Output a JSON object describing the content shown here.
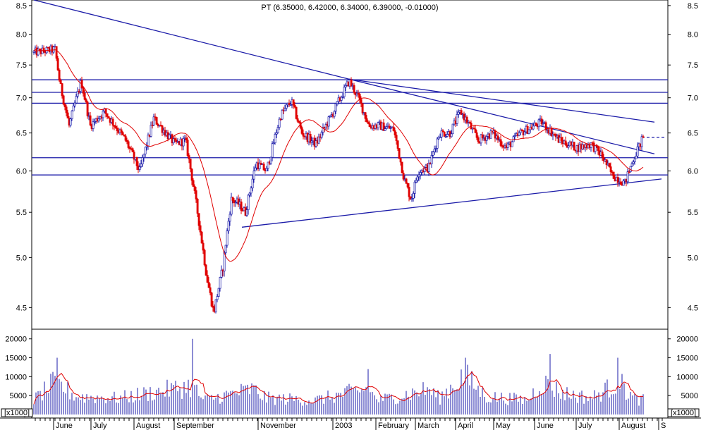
{
  "chart_data": {
    "type": "candlestick",
    "title": "PT (6.35000, 6.42000, 6.34000, 6.39000, -0.01000)",
    "price_axis": {
      "min": 4.3,
      "max": 8.6,
      "log": true,
      "ticks": [
        "4.5",
        "5.0",
        "5.5",
        "6.0",
        "6.5",
        "7.0",
        "7.5",
        "8.0",
        "8.5"
      ]
    },
    "volume_axis": {
      "min": 0,
      "max": 22000,
      "ticks": [
        "0",
        "5000",
        "10000",
        "15000",
        "20000"
      ],
      "scale_label": "x1000"
    },
    "x_labels": [
      "June",
      "July",
      "August",
      "September",
      "November",
      "2003",
      "February",
      "March",
      "April",
      "May",
      "June",
      "July",
      "August",
      "S"
    ],
    "horizontal_lines": [
      5.95,
      6.17,
      6.92,
      7.08,
      7.27
    ],
    "dashed_level": 6.44,
    "trendlines": [
      {
        "from": [
          0,
          8.6
        ],
        "to": [
          447,
          7.28
        ]
      },
      {
        "from": [
          447,
          7.28
        ],
        "to": [
          880,
          6.65
        ]
      },
      {
        "from": [
          447,
          7.28
        ],
        "to": [
          880,
          6.22
        ]
      },
      {
        "from": [
          295,
          5.33
        ],
        "to": [
          890,
          5.9
        ]
      }
    ],
    "ohlc_anchors": [
      [
        0,
        7.7
      ],
      [
        30,
        7.75
      ],
      [
        37,
        7.2
      ],
      [
        50,
        6.6
      ],
      [
        67,
        7.25
      ],
      [
        80,
        6.6
      ],
      [
        100,
        6.8
      ],
      [
        130,
        6.4
      ],
      [
        150,
        6.0
      ],
      [
        170,
        6.7
      ],
      [
        200,
        6.35
      ],
      [
        215,
        6.4
      ],
      [
        232,
        5.5
      ],
      [
        245,
        4.8
      ],
      [
        255,
        4.45
      ],
      [
        268,
        4.9
      ],
      [
        280,
        5.65
      ],
      [
        290,
        5.6
      ],
      [
        300,
        5.5
      ],
      [
        315,
        6.1
      ],
      [
        330,
        6.0
      ],
      [
        350,
        6.75
      ],
      [
        365,
        6.95
      ],
      [
        380,
        6.5
      ],
      [
        400,
        6.35
      ],
      [
        425,
        6.8
      ],
      [
        447,
        7.25
      ],
      [
        460,
        7.0
      ],
      [
        475,
        6.6
      ],
      [
        490,
        6.6
      ],
      [
        510,
        6.55
      ],
      [
        525,
        5.9
      ],
      [
        535,
        5.65
      ],
      [
        545,
        6.0
      ],
      [
        560,
        6.05
      ],
      [
        575,
        6.5
      ],
      [
        590,
        6.5
      ],
      [
        605,
        6.8
      ],
      [
        615,
        6.65
      ],
      [
        630,
        6.4
      ],
      [
        650,
        6.5
      ],
      [
        670,
        6.3
      ],
      [
        690,
        6.5
      ],
      [
        720,
        6.65
      ],
      [
        745,
        6.4
      ],
      [
        770,
        6.3
      ],
      [
        790,
        6.35
      ],
      [
        805,
        6.2
      ],
      [
        820,
        5.95
      ],
      [
        838,
        5.85
      ],
      [
        850,
        6.15
      ],
      [
        862,
        6.4
      ]
    ],
    "volume_anchors": [
      [
        0,
        4000
      ],
      [
        30,
        9000
      ],
      [
        60,
        5000
      ],
      [
        120,
        4500
      ],
      [
        225,
        8000
      ],
      [
        240,
        4000
      ],
      [
        310,
        7000
      ],
      [
        330,
        4500
      ],
      [
        400,
        4000
      ],
      [
        470,
        7000
      ],
      [
        490,
        4000
      ],
      [
        560,
        7000
      ],
      [
        575,
        4500
      ],
      [
        610,
        11000
      ],
      [
        640,
        5000
      ],
      [
        700,
        4000
      ],
      [
        720,
        9000
      ],
      [
        750,
        6000
      ],
      [
        790,
        4500
      ],
      [
        830,
        9000
      ],
      [
        850,
        4500
      ],
      [
        862,
        4000
      ]
    ],
    "volume_spikes": [
      [
        225,
        20000
      ],
      [
        32,
        15000
      ],
      [
        475,
        12000
      ],
      [
        612,
        15000
      ],
      [
        732,
        16000
      ],
      [
        828,
        15000
      ]
    ]
  }
}
